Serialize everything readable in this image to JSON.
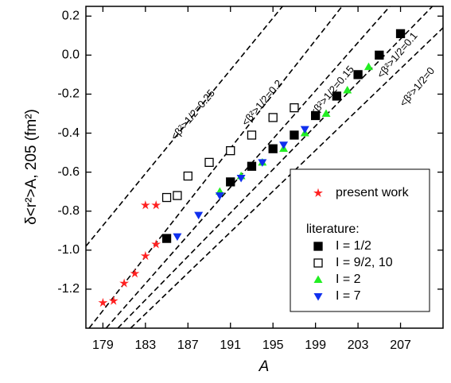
{
  "chart_data": {
    "type": "scatter",
    "x_label": "A",
    "y_label": "δ<r²>A, 205 (fm²)",
    "xlim": [
      177.4,
      211
    ],
    "ylim": [
      -1.4,
      0.25
    ],
    "xticks": [
      179,
      183,
      187,
      191,
      195,
      199,
      203,
      207
    ],
    "yticks": [
      -1.2,
      {
        "value": -1,
        "label": "-1.0"
      },
      -0.8,
      -0.6,
      -0.4,
      -0.2,
      {
        "value": 0,
        "label": "0.0"
      },
      0.2
    ],
    "legend_position": "lower right",
    "legend_group_label": "literature:",
    "series": [
      {
        "name": "present work",
        "color": "#ff2020",
        "marker": "star",
        "x": [
          179,
          180,
          181,
          182,
          183,
          184,
          183,
          184
        ],
        "y": [
          -1.27,
          -1.26,
          -1.17,
          -1.12,
          -1.03,
          -0.97,
          -0.77,
          -0.77
        ]
      },
      {
        "name": "I = 1/2",
        "color": "#000000",
        "marker": "square",
        "x": [
          185,
          191,
          193,
          195,
          197,
          199,
          201,
          203,
          205,
          207
        ],
        "y": [
          -0.94,
          -0.65,
          -0.57,
          -0.48,
          -0.41,
          -0.31,
          -0.21,
          -0.1,
          0,
          0.11
        ]
      },
      {
        "name": "I = 9/2, 10",
        "color": "#000000",
        "marker": "square-open",
        "x": [
          185,
          186,
          187,
          189,
          191,
          193,
          195,
          197
        ],
        "y": [
          -0.73,
          -0.72,
          -0.62,
          -0.55,
          -0.49,
          -0.41,
          -0.32,
          -0.27
        ]
      },
      {
        "name": "I = 2",
        "color": "#22ee22",
        "marker": "triangle-up",
        "x": [
          190,
          192,
          194,
          196,
          198,
          200,
          202,
          204
        ],
        "y": [
          -0.7,
          -0.62,
          -0.55,
          -0.48,
          -0.4,
          -0.3,
          -0.18,
          -0.06
        ]
      },
      {
        "name": "I = 7",
        "color": "#1030ee",
        "marker": "triangle-down",
        "x": [
          186,
          188,
          190,
          192,
          194,
          196,
          198
        ],
        "y": [
          -0.93,
          -0.82,
          -0.72,
          -0.63,
          -0.55,
          -0.46,
          -0.38
        ]
      }
    ],
    "reference_lines": [
      {
        "label": "<β²>1/2=0.25",
        "x": [
          177.4,
          195.9
        ],
        "y": [
          -0.98,
          0.25
        ]
      },
      {
        "label": "<β²>1/2=0.2",
        "x": [
          177.7,
          201.5
        ],
        "y": [
          -1.4,
          0.25
        ]
      },
      {
        "label": "<β²>1/2=0.15",
        "x": [
          179.3,
          206
        ],
        "y": [
          -1.4,
          0.25
        ]
      },
      {
        "label": "<β²>1/2=0.1",
        "x": [
          180.4,
          210
        ],
        "y": [
          -1.4,
          0.25
        ]
      },
      {
        "label": "<β²>1/2=0",
        "x": [
          181.6,
          211
        ],
        "y": [
          -1.4,
          0.14
        ]
      }
    ]
  }
}
